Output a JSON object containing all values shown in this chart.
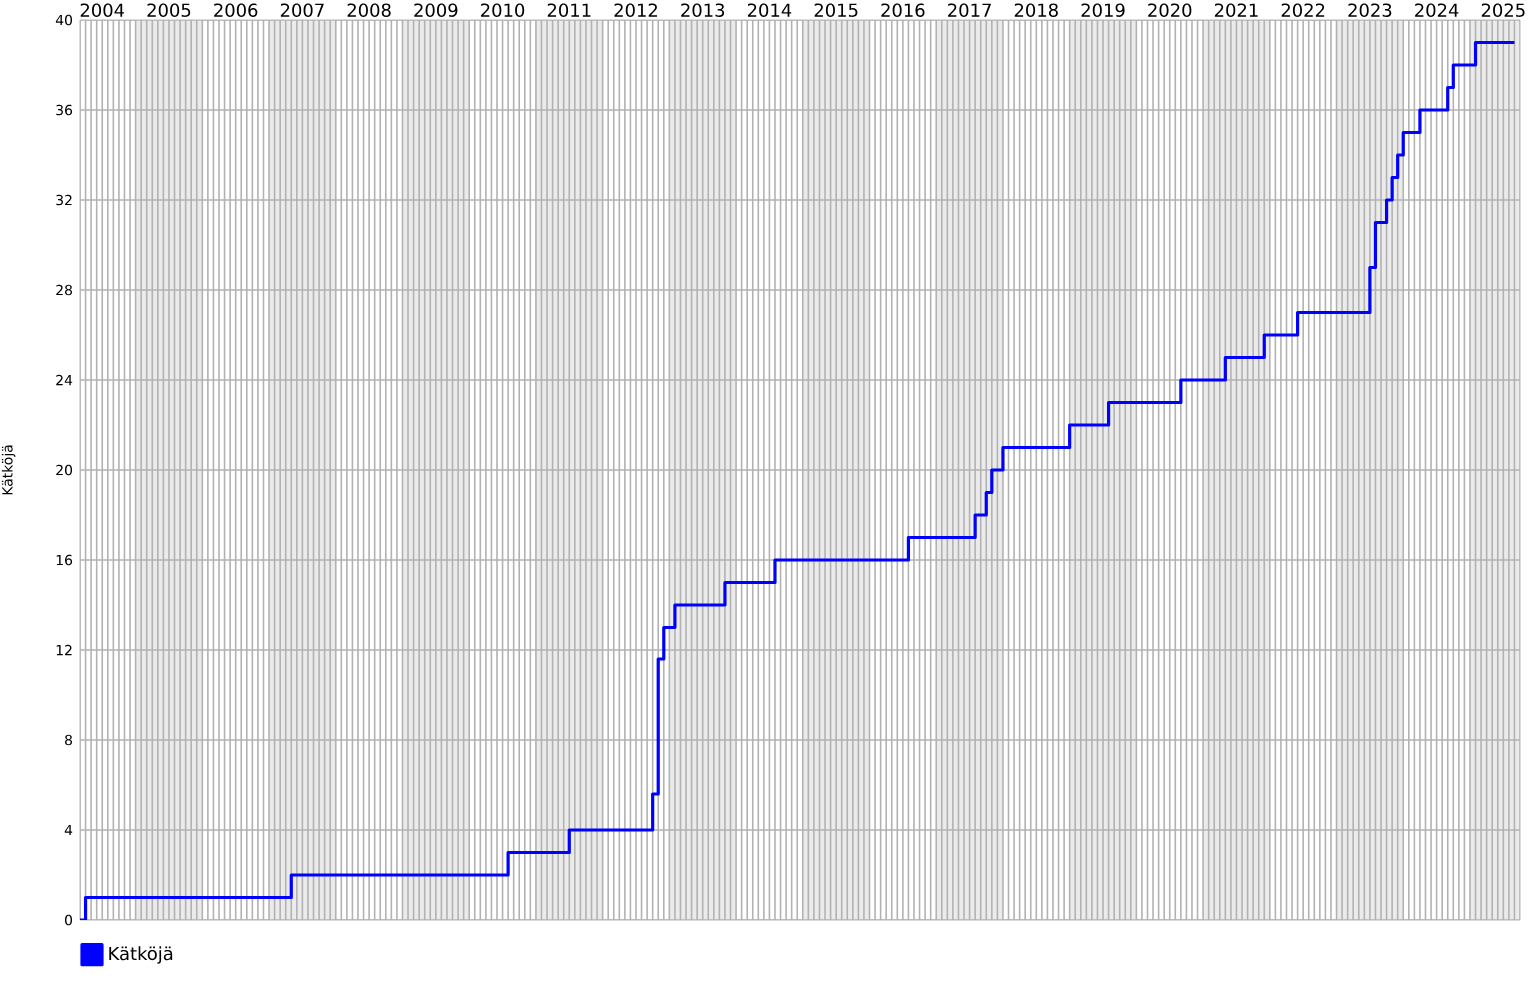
{
  "chart_data": {
    "type": "step",
    "ylabel": "Kätköjä",
    "legend": "bottom left",
    "grid": true,
    "x": [
      "2004-03",
      "2004-04",
      "2007-05",
      "2010-08",
      "2011-07",
      "2012-10",
      "2012-11",
      "2012-12",
      "2013-02",
      "2013-11",
      "2014-08",
      "2016-08",
      "2017-08",
      "2017-10",
      "2017-11",
      "2018-01",
      "2019-01",
      "2019-08",
      "2020-09",
      "2021-05",
      "2021-12",
      "2022-06",
      "2023-07",
      "2023-08",
      "2023-10",
      "2023-11",
      "2023-12",
      "2024-01",
      "2024-04",
      "2024-09",
      "2024-10",
      "2025-02",
      "2025-09"
    ],
    "series": [
      {
        "name": "Kätköjä",
        "color": "#0000ff",
        "values": [
          0,
          1,
          2,
          3,
          4,
          5.6,
          11.6,
          13,
          14,
          15,
          16,
          17,
          18,
          19,
          20,
          21,
          22,
          23,
          24,
          25,
          26,
          27,
          29,
          31,
          32,
          33,
          34,
          35,
          36,
          37,
          38,
          39,
          39
        ]
      }
    ],
    "xlim": [
      "2004-03",
      "2025-10"
    ],
    "ylim": [
      0,
      40
    ],
    "yticks": [
      0,
      4,
      8,
      12,
      16,
      20,
      24,
      28,
      32,
      36,
      40
    ],
    "xticks": [
      {
        "value": "2004-03",
        "label": null
      },
      {
        "value": "2004-04",
        "label": null
      },
      {
        "value": "2004-05",
        "label": null
      },
      {
        "value": "2004-06",
        "label": null
      },
      {
        "value": "2004-07",
        "label": "2004"
      },
      {
        "value": "2004-08",
        "label": null
      },
      {
        "value": "2004-09",
        "label": null
      },
      {
        "value": "2004-10",
        "label": null
      },
      {
        "value": "2004-11",
        "label": null
      },
      {
        "value": "2004-12",
        "label": null
      },
      {
        "value": "2005-01",
        "label": null
      },
      {
        "value": "2005-02",
        "label": null
      },
      {
        "value": "2005-03",
        "label": null
      },
      {
        "value": "2005-04",
        "label": null
      },
      {
        "value": "2005-05",
        "label": null
      },
      {
        "value": "2005-06",
        "label": null
      },
      {
        "value": "2005-07",
        "label": "2005"
      },
      {
        "value": "2005-08",
        "label": null
      },
      {
        "value": "2005-09",
        "label": null
      },
      {
        "value": "2005-10",
        "label": null
      },
      {
        "value": "2005-11",
        "label": null
      },
      {
        "value": "2005-12",
        "label": null
      },
      {
        "value": "2006-01",
        "label": null
      },
      {
        "value": "2006-02",
        "label": null
      },
      {
        "value": "2006-03",
        "label": null
      },
      {
        "value": "2006-04",
        "label": null
      },
      {
        "value": "2006-05",
        "label": null
      },
      {
        "value": "2006-06",
        "label": null
      },
      {
        "value": "2006-07",
        "label": "2006"
      },
      {
        "value": "2006-08",
        "label": null
      },
      {
        "value": "2006-09",
        "label": null
      },
      {
        "value": "2006-10",
        "label": null
      },
      {
        "value": "2006-11",
        "label": null
      },
      {
        "value": "2006-12",
        "label": null
      },
      {
        "value": "2007-01",
        "label": null
      },
      {
        "value": "2007-02",
        "label": null
      },
      {
        "value": "2007-03",
        "label": null
      },
      {
        "value": "2007-04",
        "label": null
      },
      {
        "value": "2007-05",
        "label": null
      },
      {
        "value": "2007-06",
        "label": null
      },
      {
        "value": "2007-07",
        "label": "2007"
      },
      {
        "value": "2007-08",
        "label": null
      },
      {
        "value": "2007-09",
        "label": null
      },
      {
        "value": "2007-10",
        "label": null
      },
      {
        "value": "2007-11",
        "label": null
      },
      {
        "value": "2007-12",
        "label": null
      },
      {
        "value": "2008-01",
        "label": null
      },
      {
        "value": "2008-02",
        "label": null
      },
      {
        "value": "2008-03",
        "label": null
      },
      {
        "value": "2008-04",
        "label": null
      },
      {
        "value": "2008-05",
        "label": null
      },
      {
        "value": "2008-06",
        "label": null
      },
      {
        "value": "2008-07",
        "label": "2008"
      },
      {
        "value": "2008-08",
        "label": null
      },
      {
        "value": "2008-09",
        "label": null
      },
      {
        "value": "2008-10",
        "label": null
      },
      {
        "value": "2008-11",
        "label": null
      },
      {
        "value": "2008-12",
        "label": null
      },
      {
        "value": "2009-01",
        "label": null
      },
      {
        "value": "2009-02",
        "label": null
      },
      {
        "value": "2009-03",
        "label": null
      },
      {
        "value": "2009-04",
        "label": null
      },
      {
        "value": "2009-05",
        "label": null
      },
      {
        "value": "2009-06",
        "label": null
      },
      {
        "value": "2009-07",
        "label": "2009"
      },
      {
        "value": "2009-08",
        "label": null
      },
      {
        "value": "2009-09",
        "label": null
      },
      {
        "value": "2009-10",
        "label": null
      },
      {
        "value": "2009-11",
        "label": null
      },
      {
        "value": "2009-12",
        "label": null
      },
      {
        "value": "2010-01",
        "label": null
      },
      {
        "value": "2010-02",
        "label": null
      },
      {
        "value": "2010-03",
        "label": null
      },
      {
        "value": "2010-04",
        "label": null
      },
      {
        "value": "2010-05",
        "label": null
      },
      {
        "value": "2010-06",
        "label": null
      },
      {
        "value": "2010-07",
        "label": "2010"
      },
      {
        "value": "2010-08",
        "label": null
      },
      {
        "value": "2010-09",
        "label": null
      },
      {
        "value": "2010-10",
        "label": null
      },
      {
        "value": "2010-11",
        "label": null
      },
      {
        "value": "2010-12",
        "label": null
      },
      {
        "value": "2011-01",
        "label": null
      },
      {
        "value": "2011-02",
        "label": null
      },
      {
        "value": "2011-03",
        "label": null
      },
      {
        "value": "2011-04",
        "label": null
      },
      {
        "value": "2011-05",
        "label": null
      },
      {
        "value": "2011-06",
        "label": null
      },
      {
        "value": "2011-07",
        "label": "2011"
      },
      {
        "value": "2011-08",
        "label": null
      },
      {
        "value": "2011-09",
        "label": null
      },
      {
        "value": "2011-10",
        "label": null
      },
      {
        "value": "2011-11",
        "label": null
      },
      {
        "value": "2011-12",
        "label": null
      },
      {
        "value": "2012-01",
        "label": null
      },
      {
        "value": "2012-02",
        "label": null
      },
      {
        "value": "2012-03",
        "label": null
      },
      {
        "value": "2012-04",
        "label": null
      },
      {
        "value": "2012-05",
        "label": null
      },
      {
        "value": "2012-06",
        "label": null
      },
      {
        "value": "2012-07",
        "label": "2012"
      },
      {
        "value": "2012-08",
        "label": null
      },
      {
        "value": "2012-09",
        "label": null
      },
      {
        "value": "2012-10",
        "label": null
      },
      {
        "value": "2012-11",
        "label": null
      },
      {
        "value": "2012-12",
        "label": null
      },
      {
        "value": "2013-01",
        "label": null
      },
      {
        "value": "2013-02",
        "label": null
      },
      {
        "value": "2013-03",
        "label": null
      },
      {
        "value": "2013-04",
        "label": null
      },
      {
        "value": "2013-05",
        "label": null
      },
      {
        "value": "2013-06",
        "label": null
      },
      {
        "value": "2013-07",
        "label": "2013"
      },
      {
        "value": "2013-08",
        "label": null
      },
      {
        "value": "2013-09",
        "label": null
      },
      {
        "value": "2013-10",
        "label": null
      },
      {
        "value": "2013-11",
        "label": null
      },
      {
        "value": "2013-12",
        "label": null
      },
      {
        "value": "2014-01",
        "label": null
      },
      {
        "value": "2014-02",
        "label": null
      },
      {
        "value": "2014-03",
        "label": null
      },
      {
        "value": "2014-04",
        "label": null
      },
      {
        "value": "2014-05",
        "label": null
      },
      {
        "value": "2014-06",
        "label": null
      },
      {
        "value": "2014-07",
        "label": "2014"
      },
      {
        "value": "2014-08",
        "label": null
      },
      {
        "value": "2014-09",
        "label": null
      },
      {
        "value": "2014-10",
        "label": null
      },
      {
        "value": "2014-11",
        "label": null
      },
      {
        "value": "2014-12",
        "label": null
      },
      {
        "value": "2015-01",
        "label": null
      },
      {
        "value": "2015-02",
        "label": null
      },
      {
        "value": "2015-03",
        "label": null
      },
      {
        "value": "2015-04",
        "label": null
      },
      {
        "value": "2015-05",
        "label": null
      },
      {
        "value": "2015-06",
        "label": null
      },
      {
        "value": "2015-07",
        "label": "2015"
      },
      {
        "value": "2015-08",
        "label": null
      },
      {
        "value": "2015-09",
        "label": null
      },
      {
        "value": "2015-10",
        "label": null
      },
      {
        "value": "2015-11",
        "label": null
      },
      {
        "value": "2015-12",
        "label": null
      },
      {
        "value": "2016-01",
        "label": null
      },
      {
        "value": "2016-02",
        "label": null
      },
      {
        "value": "2016-03",
        "label": null
      },
      {
        "value": "2016-04",
        "label": null
      },
      {
        "value": "2016-05",
        "label": null
      },
      {
        "value": "2016-06",
        "label": null
      },
      {
        "value": "2016-07",
        "label": "2016"
      },
      {
        "value": "2016-08",
        "label": null
      },
      {
        "value": "2016-09",
        "label": null
      },
      {
        "value": "2016-10",
        "label": null
      },
      {
        "value": "2016-11",
        "label": null
      },
      {
        "value": "2016-12",
        "label": null
      },
      {
        "value": "2017-01",
        "label": null
      },
      {
        "value": "2017-02",
        "label": null
      },
      {
        "value": "2017-03",
        "label": null
      },
      {
        "value": "2017-04",
        "label": null
      },
      {
        "value": "2017-05",
        "label": null
      },
      {
        "value": "2017-06",
        "label": null
      },
      {
        "value": "2017-07",
        "label": "2017"
      },
      {
        "value": "2017-08",
        "label": null
      },
      {
        "value": "2017-09",
        "label": null
      },
      {
        "value": "2017-10",
        "label": null
      },
      {
        "value": "2017-11",
        "label": null
      },
      {
        "value": "2017-12",
        "label": null
      },
      {
        "value": "2018-01",
        "label": null
      },
      {
        "value": "2018-02",
        "label": null
      },
      {
        "value": "2018-03",
        "label": null
      },
      {
        "value": "2018-04",
        "label": null
      },
      {
        "value": "2018-05",
        "label": null
      },
      {
        "value": "2018-06",
        "label": null
      },
      {
        "value": "2018-07",
        "label": "2018"
      },
      {
        "value": "2018-08",
        "label": null
      },
      {
        "value": "2018-09",
        "label": null
      },
      {
        "value": "2018-10",
        "label": null
      },
      {
        "value": "2018-11",
        "label": null
      },
      {
        "value": "2018-12",
        "label": null
      },
      {
        "value": "2019-01",
        "label": null
      },
      {
        "value": "2019-02",
        "label": null
      },
      {
        "value": "2019-03",
        "label": null
      },
      {
        "value": "2019-04",
        "label": null
      },
      {
        "value": "2019-05",
        "label": null
      },
      {
        "value": "2019-06",
        "label": null
      },
      {
        "value": "2019-07",
        "label": "2019"
      },
      {
        "value": "2019-08",
        "label": null
      },
      {
        "value": "2019-09",
        "label": null
      },
      {
        "value": "2019-10",
        "label": null
      },
      {
        "value": "2019-11",
        "label": null
      },
      {
        "value": "2019-12",
        "label": null
      },
      {
        "value": "2020-01",
        "label": null
      },
      {
        "value": "2020-02",
        "label": null
      },
      {
        "value": "2020-03",
        "label": null
      },
      {
        "value": "2020-04",
        "label": null
      },
      {
        "value": "2020-05",
        "label": null
      },
      {
        "value": "2020-06",
        "label": null
      },
      {
        "value": "2020-07",
        "label": "2020"
      },
      {
        "value": "2020-08",
        "label": null
      },
      {
        "value": "2020-09",
        "label": null
      },
      {
        "value": "2020-10",
        "label": null
      },
      {
        "value": "2020-11",
        "label": null
      },
      {
        "value": "2020-12",
        "label": null
      },
      {
        "value": "2021-01",
        "label": null
      },
      {
        "value": "2021-02",
        "label": null
      },
      {
        "value": "2021-03",
        "label": null
      },
      {
        "value": "2021-04",
        "label": null
      },
      {
        "value": "2021-05",
        "label": null
      },
      {
        "value": "2021-06",
        "label": null
      },
      {
        "value": "2021-07",
        "label": "2021"
      },
      {
        "value": "2021-08",
        "label": null
      },
      {
        "value": "2021-09",
        "label": null
      },
      {
        "value": "2021-10",
        "label": null
      },
      {
        "value": "2021-11",
        "label": null
      },
      {
        "value": "2021-12",
        "label": null
      },
      {
        "value": "2022-01",
        "label": null
      },
      {
        "value": "2022-02",
        "label": null
      },
      {
        "value": "2022-03",
        "label": null
      },
      {
        "value": "2022-04",
        "label": null
      },
      {
        "value": "2022-05",
        "label": null
      },
      {
        "value": "2022-06",
        "label": null
      },
      {
        "value": "2022-07",
        "label": "2022"
      },
      {
        "value": "2022-08",
        "label": null
      },
      {
        "value": "2022-09",
        "label": null
      },
      {
        "value": "2022-10",
        "label": null
      },
      {
        "value": "2022-11",
        "label": null
      },
      {
        "value": "2022-12",
        "label": null
      },
      {
        "value": "2023-01",
        "label": null
      },
      {
        "value": "2023-02",
        "label": null
      },
      {
        "value": "2023-03",
        "label": null
      },
      {
        "value": "2023-04",
        "label": null
      },
      {
        "value": "2023-05",
        "label": null
      },
      {
        "value": "2023-06",
        "label": null
      },
      {
        "value": "2023-07",
        "label": "2023"
      },
      {
        "value": "2023-08",
        "label": null
      },
      {
        "value": "2023-09",
        "label": null
      },
      {
        "value": "2023-10",
        "label": null
      },
      {
        "value": "2023-11",
        "label": null
      },
      {
        "value": "2023-12",
        "label": null
      },
      {
        "value": "2024-01",
        "label": null
      },
      {
        "value": "2024-02",
        "label": null
      },
      {
        "value": "2024-03",
        "label": null
      },
      {
        "value": "2024-04",
        "label": null
      },
      {
        "value": "2024-05",
        "label": null
      },
      {
        "value": "2024-06",
        "label": null
      },
      {
        "value": "2024-07",
        "label": "2024"
      },
      {
        "value": "2024-08",
        "label": null
      },
      {
        "value": "2024-09",
        "label": null
      },
      {
        "value": "2024-10",
        "label": null
      },
      {
        "value": "2024-11",
        "label": null
      },
      {
        "value": "2024-12",
        "label": null
      },
      {
        "value": "2025-01",
        "label": null
      },
      {
        "value": "2025-02",
        "label": null
      },
      {
        "value": "2025-03",
        "label": null
      },
      {
        "value": "2025-04",
        "label": null
      },
      {
        "value": "2025-05",
        "label": null
      },
      {
        "value": "2025-06",
        "label": null
      },
      {
        "value": "2025-07",
        "label": "2025"
      },
      {
        "value": "2025-08",
        "label": null
      },
      {
        "value": "2025-09",
        "label": null
      },
      {
        "value": "2025-10",
        "label": null
      }
    ],
    "bands": [
      {
        "axis": "x",
        "from": "2005-01",
        "to": "2006-01",
        "color": "#ebebeb"
      },
      {
        "axis": "x",
        "from": "2007-01",
        "to": "2008-01",
        "color": "#ebebeb"
      },
      {
        "axis": "x",
        "from": "2009-01",
        "to": "2010-01",
        "color": "#ebebeb"
      },
      {
        "axis": "x",
        "from": "2011-01",
        "to": "2012-01",
        "color": "#ebebeb"
      },
      {
        "axis": "x",
        "from": "2013-01",
        "to": "2014-01",
        "color": "#ebebeb"
      },
      {
        "axis": "x",
        "from": "2015-01",
        "to": "2016-01",
        "color": "#ebebeb"
      },
      {
        "axis": "x",
        "from": "2017-01",
        "to": "2018-01",
        "color": "#ebebeb"
      },
      {
        "axis": "x",
        "from": "2019-01",
        "to": "2020-01",
        "color": "#ebebeb"
      },
      {
        "axis": "x",
        "from": "2021-01",
        "to": "2022-01",
        "color": "#ebebeb"
      },
      {
        "axis": "x",
        "from": "2023-01",
        "to": "2024-01",
        "color": "#ebebeb"
      },
      {
        "axis": "x",
        "from": "2025-01",
        "to": "2025-10",
        "color": "#ebebeb"
      }
    ]
  }
}
